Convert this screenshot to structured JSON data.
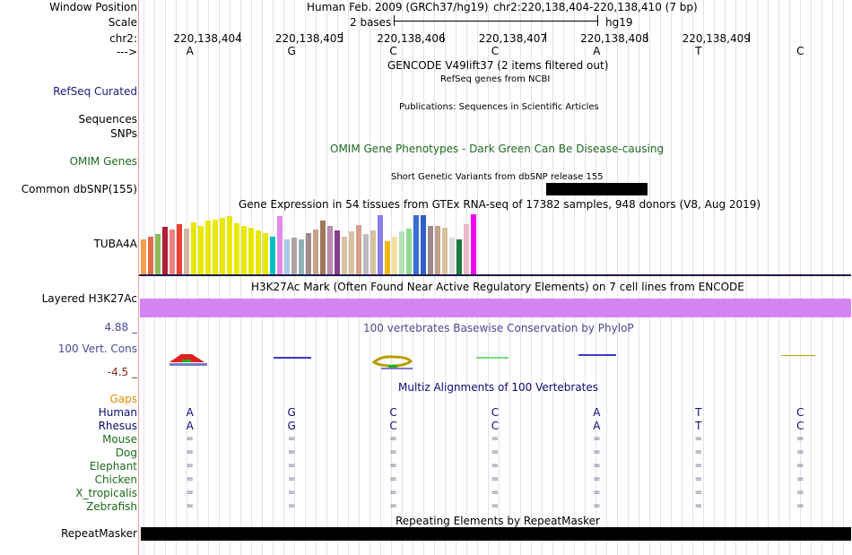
{
  "left_labels": {
    "window_position": "Window Position",
    "scale": "Scale",
    "chrom": "chr2:",
    "strand": "--->",
    "refseq": "RefSeq Curated",
    "sequences": "Sequences",
    "snps": "SNPs",
    "omim": "OMIM Genes",
    "dbsnp": "Common dbSNP(155)",
    "gtex_gene": "TUBA4A",
    "h3k27ac": "Layered H3K27Ac",
    "cons_max": "4.88 _",
    "cons": "100 Vert. Cons",
    "cons_min": "-4.5 _",
    "gaps": "Gaps",
    "repeatmasker": "RepeatMasker"
  },
  "colors": {
    "left_label_blue": "#1b1b7a",
    "omim_green": "#1f6b1f",
    "cons_blue": "#4a4a90",
    "cons_min_red": "#8b2a1b",
    "gaps_orange": "#e08c00",
    "human_blue": "#0b0b70",
    "species_green": "#1b6b1b",
    "h3k27ac_purple": "#d684f2"
  },
  "header": {
    "assembly": "Human Feb. 2009 (GRCh37/hg19)",
    "position": "chr2:220,138,404-220,138,410 (7 bp)",
    "scale_text": "2 bases",
    "scale_db": "hg19"
  },
  "ruler": [
    "220,138,404",
    "220,138,405",
    "220,138,406",
    "220,138,407",
    "220,138,408",
    "220,138,409"
  ],
  "bases": [
    "A",
    "G",
    "C",
    "C",
    "A",
    "T",
    "C"
  ],
  "tracks": {
    "gencode": "GENCODE V49lift37 (2 items filtered out)",
    "refseq": "RefSeq genes from NCBI",
    "publications": "Publications: Sequences in Scientific Articles",
    "omim_title": "OMIM Gene Phenotypes - Dark Green Can Be Disease-causing",
    "dbsnp_title": "Short Genetic Variants from dbSNP release 155",
    "gtex_title": "Gene Expression in 54 tissues from GTEx RNA-seq of 17382 samples, 948 donors (V8, Aug 2019)",
    "h3k27ac_title": "H3K27Ac Mark (Often Found Near Active Regulatory Elements) on 7 cell lines from ENCODE",
    "phylop_title": "100 vertebrates Basewise Conservation by PhyloP",
    "multiz_title": "Multiz Alignments of 100 Vertebrates",
    "repeat_title": "Repeating Elements by RepeatMasker"
  },
  "species": [
    {
      "name": "Human",
      "bases": [
        "A",
        "G",
        "C",
        "C",
        "A",
        "T",
        "C"
      ]
    },
    {
      "name": "Rhesus",
      "bases": [
        "A",
        "G",
        "C",
        "C",
        "A",
        "T",
        "C"
      ]
    },
    {
      "name": "Mouse",
      "bases": [
        "=",
        "=",
        "=",
        "=",
        "=",
        "=",
        "="
      ]
    },
    {
      "name": "Dog",
      "bases": [
        "=",
        "=",
        "=",
        "=",
        "=",
        "=",
        "="
      ]
    },
    {
      "name": "Elephant",
      "bases": [
        "=",
        "=",
        "=",
        "=",
        "=",
        "=",
        "="
      ]
    },
    {
      "name": "Chicken",
      "bases": [
        "=",
        "=",
        "=",
        "=",
        "=",
        "=",
        "="
      ]
    },
    {
      "name": "X_tropicalis",
      "bases": [
        "=",
        "=",
        "=",
        "=",
        "=",
        "=",
        "="
      ]
    },
    {
      "name": "Zebrafish",
      "bases": [
        "=",
        "=",
        "=",
        "=",
        "=",
        "=",
        "="
      ]
    }
  ],
  "gtex_bars": [
    {
      "h": 0.58,
      "c": "#f5a04a"
    },
    {
      "h": 0.62,
      "c": "#e26b4a"
    },
    {
      "h": 0.66,
      "c": "#8fbc5a"
    },
    {
      "h": 0.78,
      "c": "#ad1f3a"
    },
    {
      "h": 0.73,
      "c": "#f08080"
    },
    {
      "h": 0.82,
      "c": "#ee4035"
    },
    {
      "h": 0.75,
      "c": "#d3b5a6"
    },
    {
      "h": 0.86,
      "c": "#e8e800"
    },
    {
      "h": 0.8,
      "c": "#e8e800"
    },
    {
      "h": 0.88,
      "c": "#e8e800"
    },
    {
      "h": 0.9,
      "c": "#e8e800"
    },
    {
      "h": 0.93,
      "c": "#e8e800"
    },
    {
      "h": 0.95,
      "c": "#e8e800"
    },
    {
      "h": 0.84,
      "c": "#e8e800"
    },
    {
      "h": 0.79,
      "c": "#e8e800"
    },
    {
      "h": 0.76,
      "c": "#e8e800"
    },
    {
      "h": 0.72,
      "c": "#e8e800"
    },
    {
      "h": 0.68,
      "c": "#e8e800"
    },
    {
      "h": 0.62,
      "c": "#00c1c1"
    },
    {
      "h": 0.95,
      "c": "#e08ae8"
    },
    {
      "h": 0.57,
      "c": "#a6c8e6"
    },
    {
      "h": 0.6,
      "c": "#b2a3a3"
    },
    {
      "h": 0.58,
      "c": "#8fb2ba"
    },
    {
      "h": 0.67,
      "c": "#a08a8a"
    },
    {
      "h": 0.73,
      "c": "#c2a38a"
    },
    {
      "h": 0.88,
      "c": "#a0765a"
    },
    {
      "h": 0.8,
      "c": "#bd8ab0"
    },
    {
      "h": 0.72,
      "c": "#8a3d8a"
    },
    {
      "h": 0.62,
      "c": "#d6c2a0"
    },
    {
      "h": 0.7,
      "c": "#d6c2a0"
    },
    {
      "h": 0.81,
      "c": "#d6a08a"
    },
    {
      "h": 0.66,
      "c": "#bcbcbc"
    },
    {
      "h": 0.72,
      "c": "#d6c2a0"
    },
    {
      "h": 0.97,
      "c": "#8a7de8"
    },
    {
      "h": 0.55,
      "c": "#f2b800"
    },
    {
      "h": 0.62,
      "c": "#f0e0a0"
    },
    {
      "h": 0.7,
      "c": "#b6e0b6"
    },
    {
      "h": 0.75,
      "c": "#8fdc8f"
    },
    {
      "h": 0.97,
      "c": "#3a6ed4"
    },
    {
      "h": 0.97,
      "c": "#2f5fc8"
    },
    {
      "h": 0.8,
      "c": "#a08a8a"
    },
    {
      "h": 0.8,
      "c": "#c2a38a"
    },
    {
      "h": 0.77,
      "c": "#d6c2a0"
    },
    {
      "h": 0.6,
      "c": "#dcdcdc"
    },
    {
      "h": 0.58,
      "c": "#1b7a3a"
    },
    {
      "h": 0.83,
      "c": "#f0b8c8"
    },
    {
      "h": 0.99,
      "c": "#f000f0"
    }
  ]
}
